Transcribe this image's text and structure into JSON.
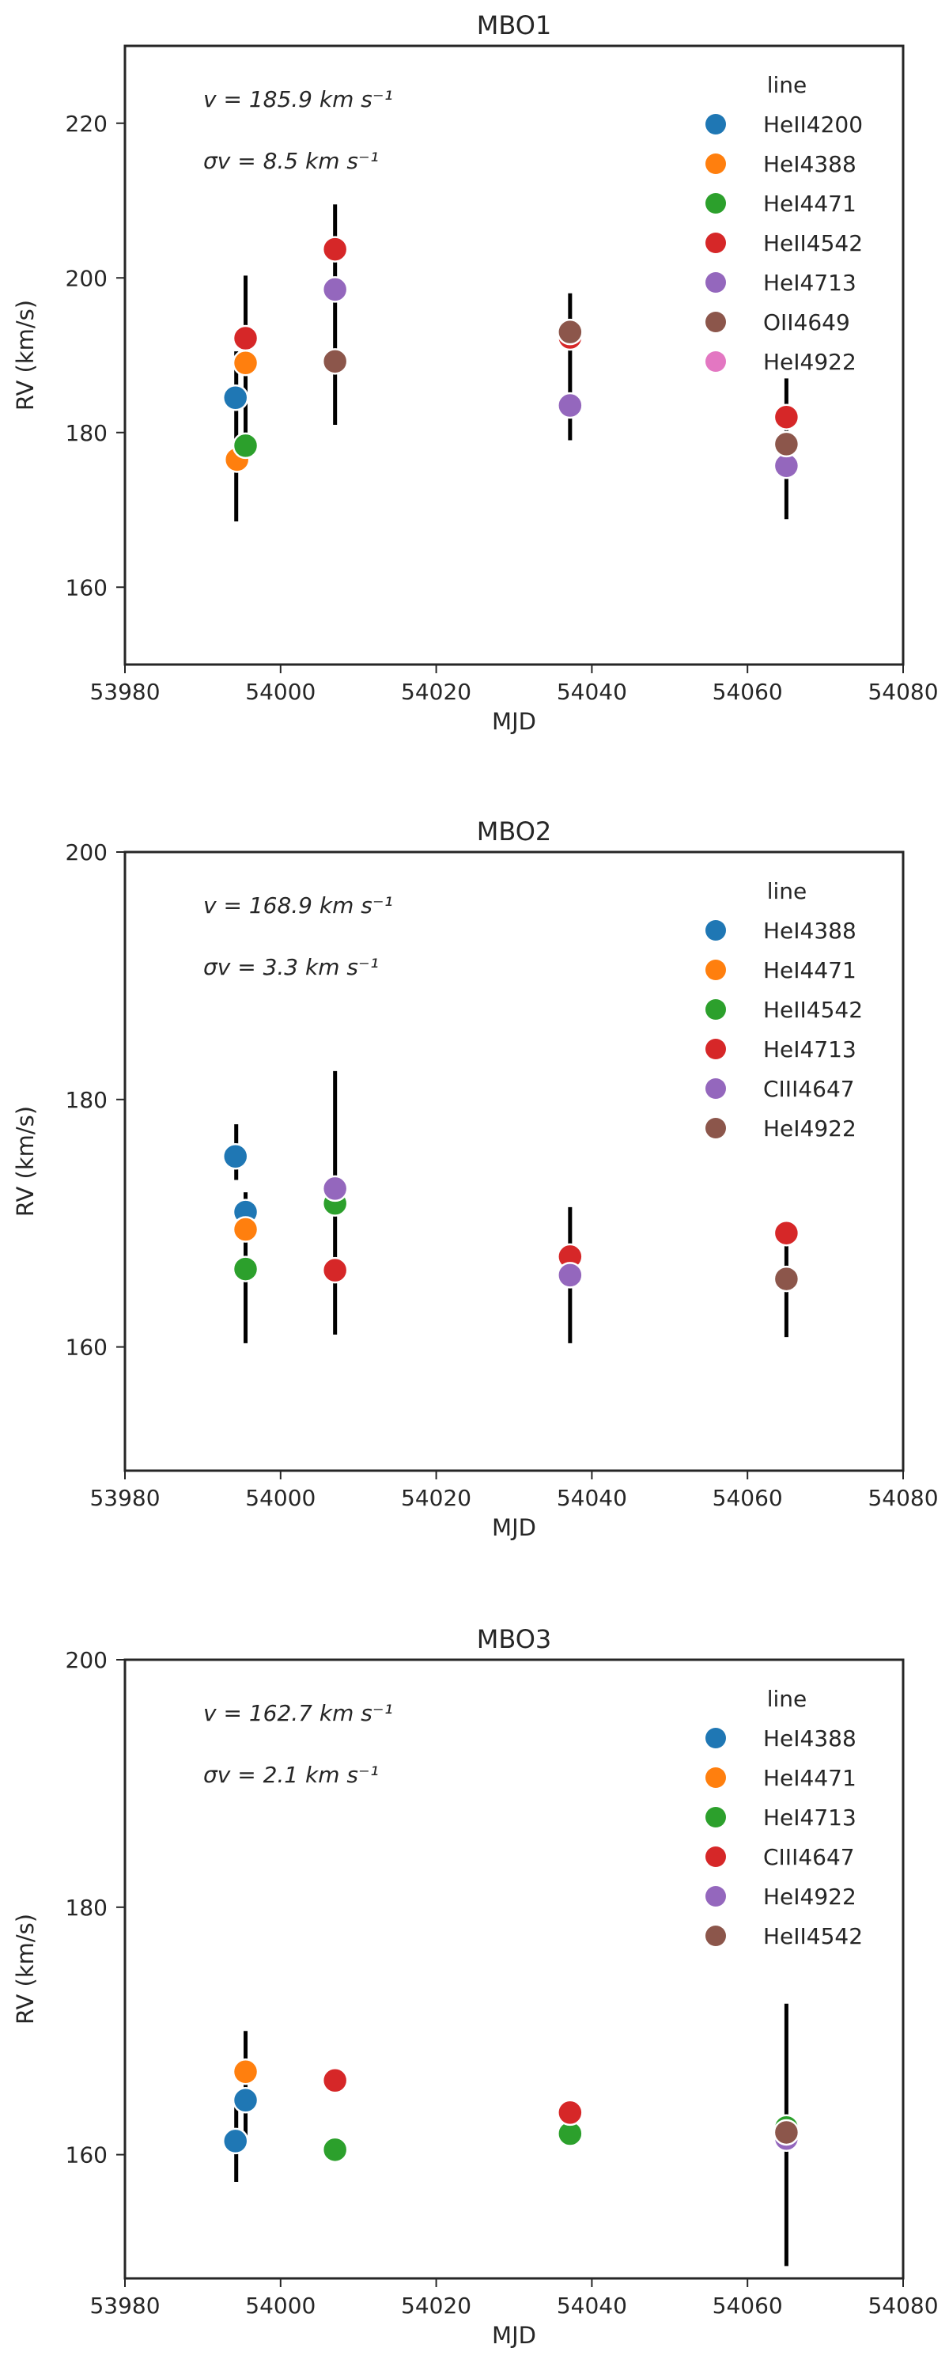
{
  "chart_data": [
    {
      "type": "scatter",
      "title": "MBO1",
      "xlabel": "MJD",
      "ylabel": "RV (km/s)",
      "xlim": [
        53980,
        54080
      ],
      "ylim": [
        150,
        230
      ],
      "xticks": [
        53980,
        54000,
        54020,
        54040,
        54060,
        54080
      ],
      "yticks": [
        160,
        180,
        200,
        220
      ],
      "xtick_labels": [
        "53980",
        "54000",
        "54020",
        "54040",
        "54060",
        "54080"
      ],
      "ytick_labels": [
        "160",
        "180",
        "200",
        "220"
      ],
      "annotation": {
        "v_label": "v = 185.9 km s⁻¹",
        "sigma_label": "σv = 8.5 km s⁻¹"
      },
      "legend_title": "line",
      "legend_position": "upper-right",
      "error_bars": [
        {
          "x": 53994.3,
          "low": 168.5,
          "high": 190.5
        },
        {
          "x": 53995.5,
          "low": 177.0,
          "high": 200.3
        },
        {
          "x": 54007.0,
          "low": 181.0,
          "high": 209.5
        },
        {
          "x": 54037.2,
          "low": 179.0,
          "high": 198.0
        },
        {
          "x": 54065.0,
          "low": 168.8,
          "high": 187.0
        }
      ],
      "series": [
        {
          "name": "HeII4200",
          "color": "#1f77b4",
          "points": [
            {
              "x": 53994.2,
              "y": 184.5
            }
          ]
        },
        {
          "name": "HeI4388",
          "color": "#ff7f0e",
          "points": [
            {
              "x": 53994.4,
              "y": 176.5
            },
            {
              "x": 53995.5,
              "y": 189.0
            }
          ]
        },
        {
          "name": "HeI4471",
          "color": "#2ca02c",
          "points": [
            {
              "x": 53995.5,
              "y": 178.3
            }
          ]
        },
        {
          "name": "HeII4542",
          "color": "#d62728",
          "points": [
            {
              "x": 53995.5,
              "y": 192.2
            },
            {
              "x": 54007.0,
              "y": 203.7
            },
            {
              "x": 54037.2,
              "y": 192.3
            },
            {
              "x": 54065.0,
              "y": 182.0
            }
          ]
        },
        {
          "name": "HeI4713",
          "color": "#9467bd",
          "points": [
            {
              "x": 54007.0,
              "y": 198.5
            },
            {
              "x": 54037.2,
              "y": 183.5
            },
            {
              "x": 54065.0,
              "y": 175.7
            }
          ]
        },
        {
          "name": "OII4649",
          "color": "#8c564b",
          "points": [
            {
              "x": 54007.0,
              "y": 189.2
            },
            {
              "x": 54037.2,
              "y": 193.0
            },
            {
              "x": 54065.0,
              "y": 178.5
            }
          ]
        },
        {
          "name": "HeI4922",
          "color": "#e377c2",
          "points": []
        }
      ]
    },
    {
      "type": "scatter",
      "title": "MBO2",
      "xlabel": "MJD",
      "ylabel": "RV (km/s)",
      "xlim": [
        53980,
        54080
      ],
      "ylim": [
        150,
        200
      ],
      "xticks": [
        53980,
        54000,
        54020,
        54040,
        54060,
        54080
      ],
      "yticks": [
        160,
        180,
        200
      ],
      "xtick_labels": [
        "53980",
        "54000",
        "54020",
        "54040",
        "54060",
        "54080"
      ],
      "ytick_labels": [
        "160",
        "180",
        "200"
      ],
      "annotation": {
        "v_label": "v = 168.9 km s⁻¹",
        "sigma_label": "σv = 3.3 km s⁻¹"
      },
      "legend_title": "line",
      "legend_position": "upper-right",
      "error_bars": [
        {
          "x": 53994.3,
          "low": 173.5,
          "high": 178.0
        },
        {
          "x": 53995.5,
          "low": 160.3,
          "high": 172.5
        },
        {
          "x": 54007.0,
          "low": 161.0,
          "high": 182.3
        },
        {
          "x": 54037.2,
          "low": 160.3,
          "high": 171.3
        },
        {
          "x": 54065.0,
          "low": 160.8,
          "high": 168.5
        }
      ],
      "series": [
        {
          "name": "HeI4388",
          "color": "#1f77b4",
          "points": [
            {
              "x": 53994.2,
              "y": 175.4
            },
            {
              "x": 53995.5,
              "y": 170.9
            }
          ]
        },
        {
          "name": "HeI4471",
          "color": "#ff7f0e",
          "points": [
            {
              "x": 53995.5,
              "y": 169.5
            }
          ]
        },
        {
          "name": "HeII4542",
          "color": "#2ca02c",
          "points": [
            {
              "x": 53995.5,
              "y": 166.3
            },
            {
              "x": 54007.0,
              "y": 171.6
            }
          ]
        },
        {
          "name": "HeI4713",
          "color": "#d62728",
          "points": [
            {
              "x": 54007.0,
              "y": 166.2
            },
            {
              "x": 54037.2,
              "y": 167.3
            },
            {
              "x": 54065.0,
              "y": 169.2
            }
          ]
        },
        {
          "name": "CIII4647",
          "color": "#9467bd",
          "points": [
            {
              "x": 54007.0,
              "y": 172.8
            },
            {
              "x": 54037.2,
              "y": 165.8
            }
          ]
        },
        {
          "name": "HeI4922",
          "color": "#8c564b",
          "points": [
            {
              "x": 54065.0,
              "y": 165.5
            }
          ]
        }
      ]
    },
    {
      "type": "scatter",
      "title": "MBO3",
      "xlabel": "MJD",
      "ylabel": "RV (km/s)",
      "xlim": [
        53980,
        54080
      ],
      "ylim": [
        150,
        200
      ],
      "xticks": [
        53980,
        54000,
        54020,
        54040,
        54060,
        54080
      ],
      "yticks": [
        160,
        180,
        200
      ],
      "xtick_labels": [
        "53980",
        "54000",
        "54020",
        "54040",
        "54060",
        "54080"
      ],
      "ytick_labels": [
        "160",
        "180",
        "200"
      ],
      "annotation": {
        "v_label": "v = 162.7 km s⁻¹",
        "sigma_label": "σv = 2.1 km s⁻¹"
      },
      "legend_title": "line",
      "legend_position": "upper-right",
      "error_bars": [
        {
          "x": 53994.3,
          "low": 157.8,
          "high": 164.5
        },
        {
          "x": 53995.5,
          "low": 161.5,
          "high": 170.0
        },
        {
          "x": 54065.0,
          "low": 151.0,
          "high": 172.2
        }
      ],
      "series": [
        {
          "name": "HeI4388",
          "color": "#1f77b4",
          "points": [
            {
              "x": 53994.2,
              "y": 161.1
            },
            {
              "x": 53995.5,
              "y": 164.4
            }
          ]
        },
        {
          "name": "HeI4471",
          "color": "#ff7f0e",
          "points": [
            {
              "x": 53995.5,
              "y": 166.7
            }
          ]
        },
        {
          "name": "HeI4713",
          "color": "#2ca02c",
          "points": [
            {
              "x": 54007.0,
              "y": 160.4
            },
            {
              "x": 54037.2,
              "y": 161.7
            },
            {
              "x": 54065.0,
              "y": 162.2
            }
          ]
        },
        {
          "name": "CIII4647",
          "color": "#d62728",
          "points": [
            {
              "x": 54007.0,
              "y": 166.0
            },
            {
              "x": 54037.2,
              "y": 163.4
            }
          ]
        },
        {
          "name": "HeI4922",
          "color": "#9467bd",
          "points": [
            {
              "x": 54065.0,
              "y": 161.3
            }
          ]
        },
        {
          "name": "HeII4542",
          "color": "#8c564b",
          "points": [
            {
              "x": 54065.0,
              "y": 161.8
            }
          ]
        }
      ]
    }
  ]
}
